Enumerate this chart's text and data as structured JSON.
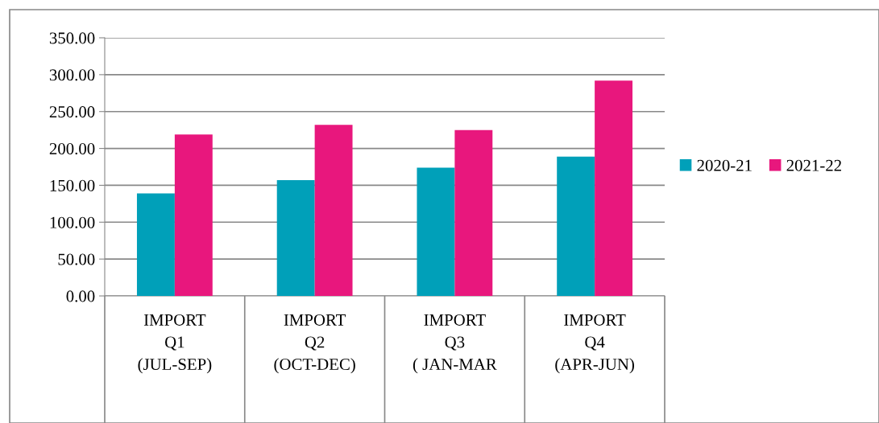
{
  "chart_data": {
    "type": "bar",
    "categories": [
      "IMPORT\nQ1\n(JUL-SEP)",
      "IMPORT\nQ2\n(OCT-DEC)",
      "IMPORT\nQ3\n( JAN-MAR",
      "IMPORT\nQ4\n(APR-JUN)"
    ],
    "series": [
      {
        "name": "2020-21",
        "color": "#00a0b9",
        "values": [
          139,
          157,
          174,
          189
        ]
      },
      {
        "name": "2021-22",
        "color": "#e8177d",
        "values": [
          219,
          232,
          225,
          292
        ]
      }
    ],
    "ylim": [
      0,
      350
    ],
    "yticks": [
      {
        "value": 0,
        "label": "0.00"
      },
      {
        "value": 50,
        "label": "50.00"
      },
      {
        "value": 100,
        "label": "100.00"
      },
      {
        "value": 150,
        "label": "150.00"
      },
      {
        "value": 200,
        "label": "200.00"
      },
      {
        "value": 250,
        "label": "250.00"
      },
      {
        "value": 300,
        "label": "300.00"
      },
      {
        "value": 350,
        "label": "350.00"
      }
    ],
    "grid": "y",
    "legend": "right"
  }
}
